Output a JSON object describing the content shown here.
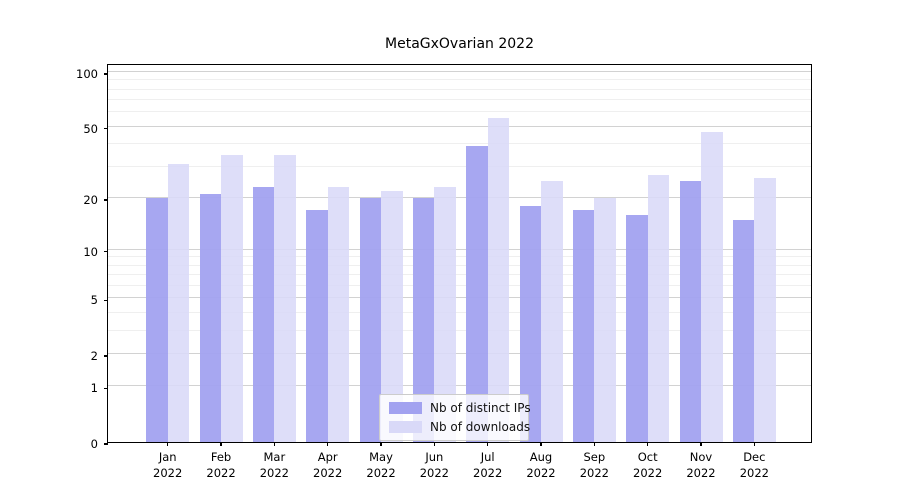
{
  "title": "MetaGxOvarian 2022",
  "chart_data": {
    "type": "bar",
    "title": "MetaGxOvarian 2022",
    "categories": [
      "Jan",
      "Feb",
      "Mar",
      "Apr",
      "May",
      "Jun",
      "Jul",
      "Aug",
      "Sep",
      "Oct",
      "Nov",
      "Dec"
    ],
    "category_year": "2022",
    "series": [
      {
        "name": "Nb of distinct IPs",
        "color": "#a2a2f0",
        "values": [
          20,
          21,
          23,
          17,
          20,
          20,
          39,
          18,
          17,
          16,
          25,
          15
        ]
      },
      {
        "name": "Nb of downloads",
        "color": "#d9d9f8",
        "values": [
          31,
          35,
          35,
          23,
          22,
          23,
          56,
          25,
          20,
          27,
          47,
          26
        ]
      }
    ],
    "yscale": "log1p",
    "ymax": 112,
    "ytick_values": [
      100,
      50,
      20,
      10,
      5,
      2,
      1,
      0
    ],
    "ytick_labels": [
      "100",
      "50",
      "20",
      "10",
      "5",
      "2",
      "1",
      "0"
    ],
    "major_gridlines": [
      1,
      2,
      5,
      10,
      20,
      50,
      100
    ],
    "minor_gridlines": [
      3,
      4,
      6,
      7,
      8,
      9,
      30,
      40,
      60,
      70,
      80,
      90
    ],
    "legend_position": "bottom-center",
    "grid": "horizontal"
  },
  "legend": {
    "items": [
      {
        "label": "Nb of distinct IPs",
        "color": "#a2a2f0"
      },
      {
        "label": "Nb of downloads",
        "color": "#d9d9f8"
      }
    ]
  }
}
